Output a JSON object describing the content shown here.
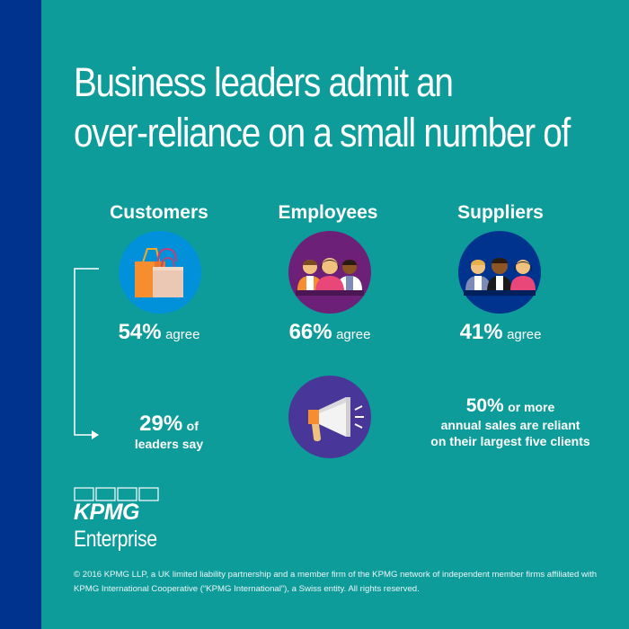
{
  "title": {
    "line1": "Business leaders admit an",
    "line2": "over-reliance on a small number of"
  },
  "categories": [
    {
      "label": "Customers",
      "percent": "54%",
      "suffix": "agree",
      "icon": "shopping-bags-icon",
      "circle_color": "#0091da"
    },
    {
      "label": "Employees",
      "percent": "66%",
      "suffix": "agree",
      "icon": "employees-group-icon",
      "circle_color": "#6d2077"
    },
    {
      "label": "Suppliers",
      "percent": "41%",
      "suffix": "agree",
      "icon": "suppliers-group-icon",
      "circle_color": "#00338d"
    }
  ],
  "callout_left": {
    "percent": "29%",
    "text1": "of",
    "text2": "leaders say"
  },
  "callout_right": {
    "percent": "50%",
    "text1": "or more",
    "line2": "annual sales are reliant",
    "line3": "on their largest five clients"
  },
  "megaphone": {
    "icon": "megaphone-icon",
    "circle_color": "#483698"
  },
  "logo": {
    "name": "KPMG",
    "sub": "Enterprise"
  },
  "footer": "© 2016 KPMG LLP, a UK limited liability partnership and a member firm of the KPMG network of independent member firms affiliated with KPMG International Cooperative (“KPMG International”), a Swiss entity. All rights reserved.",
  "colors": {
    "background": "#0e9c9a",
    "sidebar": "#00338d"
  }
}
